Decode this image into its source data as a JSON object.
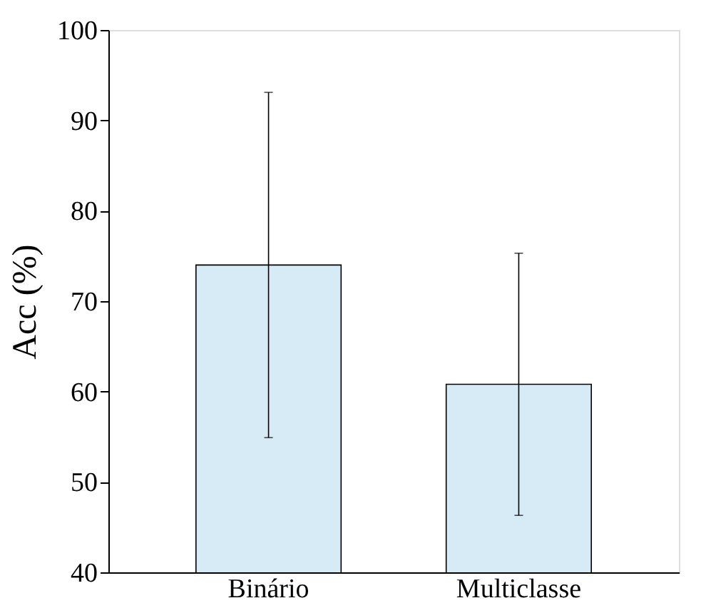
{
  "chart_data": {
    "type": "bar",
    "ylabel": "Acc (%)",
    "categories": [
      "Binário",
      "Multiclasse"
    ],
    "values": [
      74.0,
      60.8
    ],
    "errors": [
      19.1,
      14.5
    ],
    "color": "#d6ebf5",
    "ylim": [
      40,
      100
    ],
    "yticks": [
      40,
      50,
      60,
      70,
      80,
      90,
      100
    ],
    "grid": false
  }
}
